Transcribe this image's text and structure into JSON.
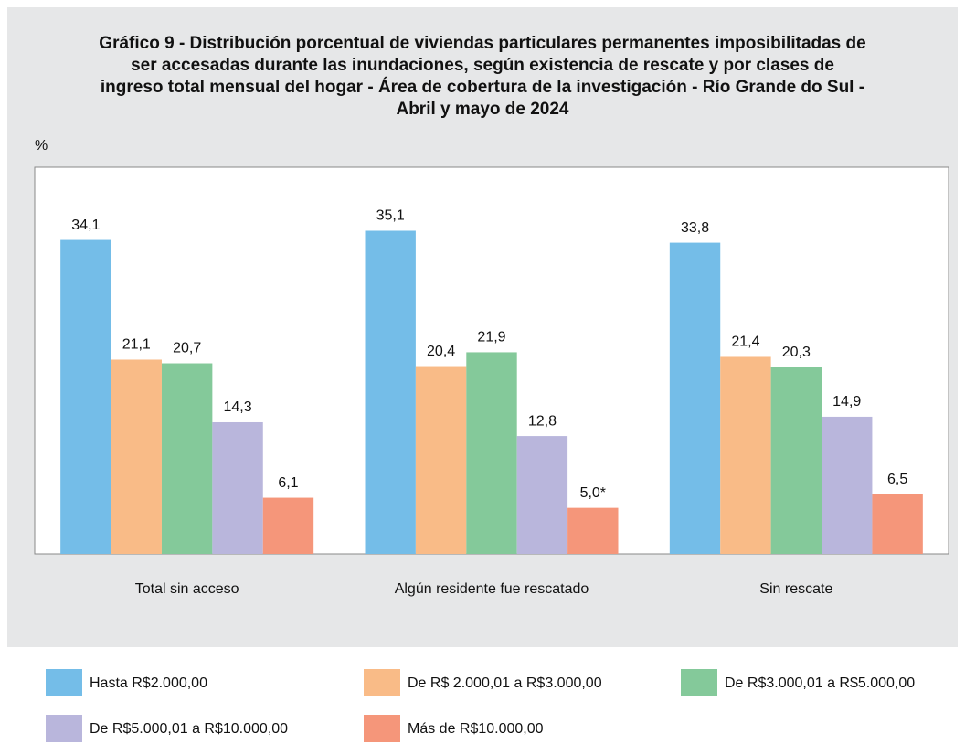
{
  "chart_data": {
    "type": "bar",
    "title": "Gráfico 9 - Distribución porcentual de viviendas particulares permanentes imposibilitadas de ser accesadas durante las inundaciones, según existencia de rescate y por clases de ingreso total mensual del hogar - Área de cobertura de la investigación - Río Grande do Sul - Abril y mayo de 2024",
    "y_label": "%",
    "categories": [
      "Total sin acceso",
      "Algún residente fue rescatado",
      "Sin rescate"
    ],
    "series": [
      {
        "name": "Hasta R$2.000,00",
        "color": "#74bde8",
        "values": [
          34.1,
          35.1,
          33.8
        ],
        "value_labels": [
          "34,1",
          "35,1",
          "33,8"
        ]
      },
      {
        "name": "De R$ 2.000,01 a R$3.000,00",
        "color": "#f9bb87",
        "values": [
          21.1,
          20.4,
          21.4
        ],
        "value_labels": [
          "21,1",
          "20,4",
          "21,4"
        ]
      },
      {
        "name": "De R$3.000,01 a R$5.000,00",
        "color": "#84c99a",
        "values": [
          20.7,
          21.9,
          20.3
        ],
        "value_labels": [
          "20,7",
          "21,9",
          "20,3"
        ]
      },
      {
        "name": "De R$5.000,01 a R$10.000,00",
        "color": "#b9b6dc",
        "values": [
          14.3,
          12.8,
          14.9
        ],
        "value_labels": [
          "14,3",
          "12,8",
          "14,9"
        ]
      },
      {
        "name": "Más de R$10.000,00",
        "color": "#f5967a",
        "values": [
          6.1,
          5.0,
          6.5
        ],
        "value_labels": [
          "6,1",
          "5,0*",
          "6,5"
        ]
      }
    ],
    "ylim": [
      0,
      42
    ]
  }
}
